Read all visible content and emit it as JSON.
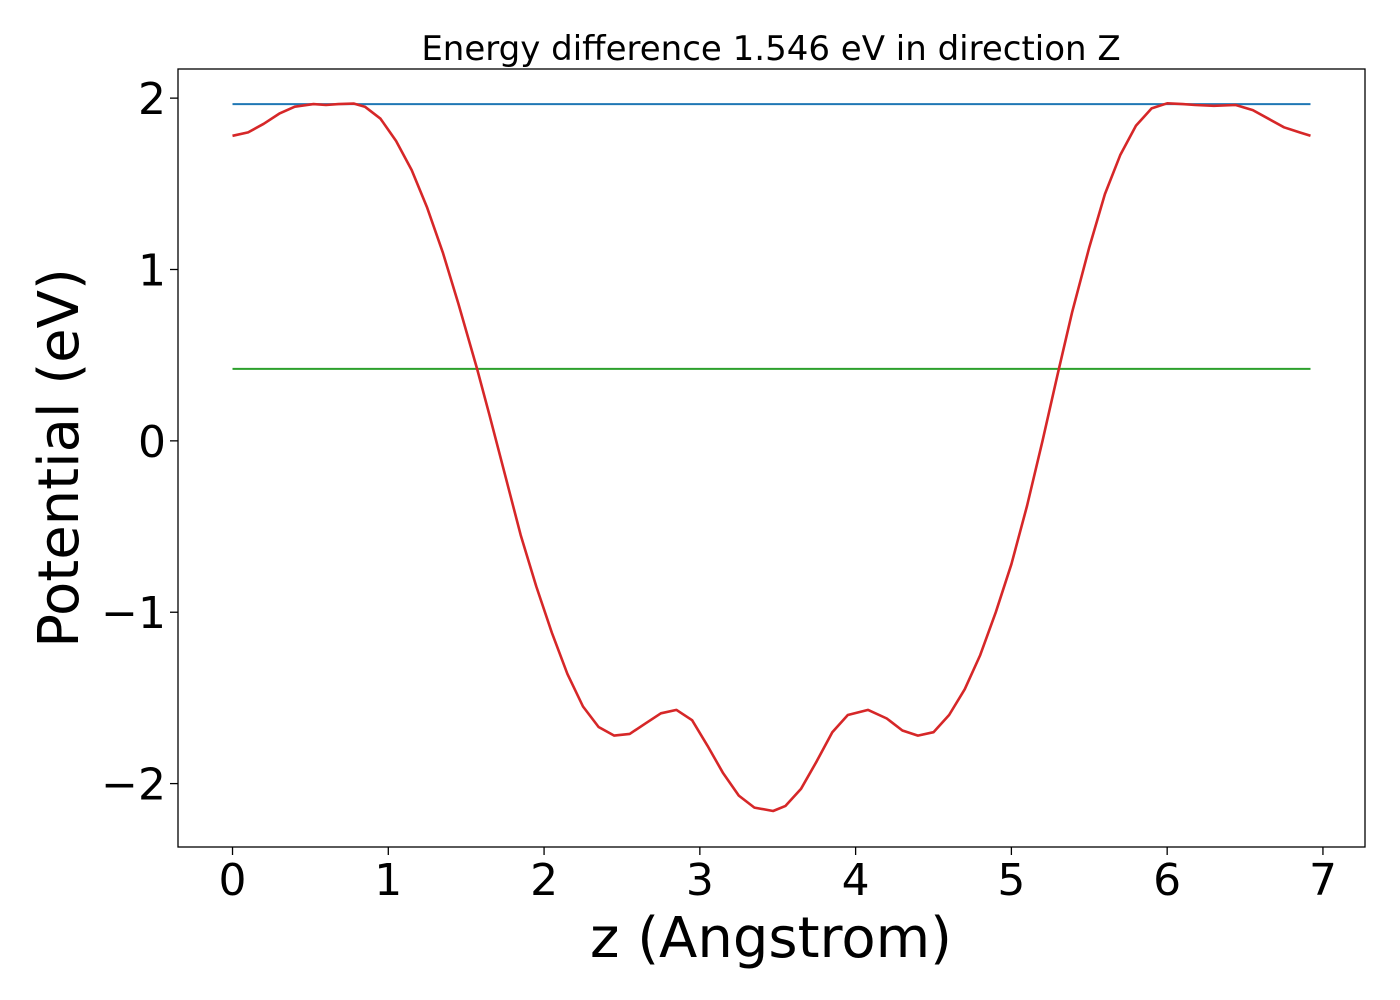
{
  "chart_data": {
    "type": "line",
    "title": "Energy difference 1.546 eV in direction Z",
    "xlabel": "z (Angstrom)",
    "ylabel": "Potential (eV)",
    "xlim": [
      -0.35,
      7.27
    ],
    "ylim": [
      -2.37,
      2.17
    ],
    "xticks": [
      0,
      1,
      2,
      3,
      4,
      5,
      6,
      7
    ],
    "xtick_labels": [
      "0",
      "1",
      "2",
      "3",
      "4",
      "5",
      "6",
      "7"
    ],
    "yticks": [
      2,
      1,
      0,
      -1,
      -2
    ],
    "ytick_labels": [
      "2",
      "1",
      "0",
      "−1",
      "−2"
    ],
    "grid": false,
    "series": [
      {
        "color": "#1f77b4",
        "x": [
          0,
          6.92
        ],
        "y": [
          1.965,
          1.965
        ]
      },
      {
        "color": "#2ca02c",
        "x": [
          0,
          6.92
        ],
        "y": [
          0.42,
          0.42
        ]
      },
      {
        "color": "#d62728",
        "x": [
          0,
          0.1,
          0.2,
          0.3,
          0.4,
          0.52,
          0.6,
          0.68,
          0.78,
          0.85,
          0.95,
          1.05,
          1.15,
          1.25,
          1.35,
          1.45,
          1.57,
          1.65,
          1.75,
          1.85,
          1.95,
          2.05,
          2.15,
          2.25,
          2.35,
          2.45,
          2.55,
          2.65,
          2.75,
          2.85,
          2.95,
          3.05,
          3.15,
          3.25,
          3.35,
          3.47,
          3.55,
          3.65,
          3.75,
          3.85,
          3.95,
          4.08,
          4.2,
          4.3,
          4.4,
          4.5,
          4.6,
          4.7,
          4.8,
          4.9,
          5.0,
          5.1,
          5.2,
          5.3,
          5.39,
          5.5,
          5.6,
          5.7,
          5.8,
          5.9,
          6.0,
          6.1,
          6.18,
          6.3,
          6.44,
          6.55,
          6.65,
          6.75,
          6.85,
          6.92
        ],
        "y": [
          1.78,
          1.8,
          1.85,
          1.91,
          1.95,
          1.965,
          1.96,
          1.965,
          1.968,
          1.95,
          1.88,
          1.75,
          1.58,
          1.36,
          1.1,
          0.8,
          0.42,
          0.15,
          -0.2,
          -0.55,
          -0.85,
          -1.12,
          -1.36,
          -1.55,
          -1.67,
          -1.72,
          -1.71,
          -1.65,
          -1.59,
          -1.57,
          -1.63,
          -1.78,
          -1.94,
          -2.07,
          -2.14,
          -2.16,
          -2.13,
          -2.03,
          -1.87,
          -1.7,
          -1.6,
          -1.57,
          -1.62,
          -1.69,
          -1.72,
          -1.7,
          -1.6,
          -1.45,
          -1.25,
          -1.0,
          -0.72,
          -0.38,
          0.0,
          0.4,
          0.75,
          1.13,
          1.44,
          1.67,
          1.84,
          1.94,
          1.97,
          1.965,
          1.96,
          1.955,
          1.96,
          1.93,
          1.88,
          1.83,
          1.8,
          1.78
        ]
      }
    ]
  }
}
